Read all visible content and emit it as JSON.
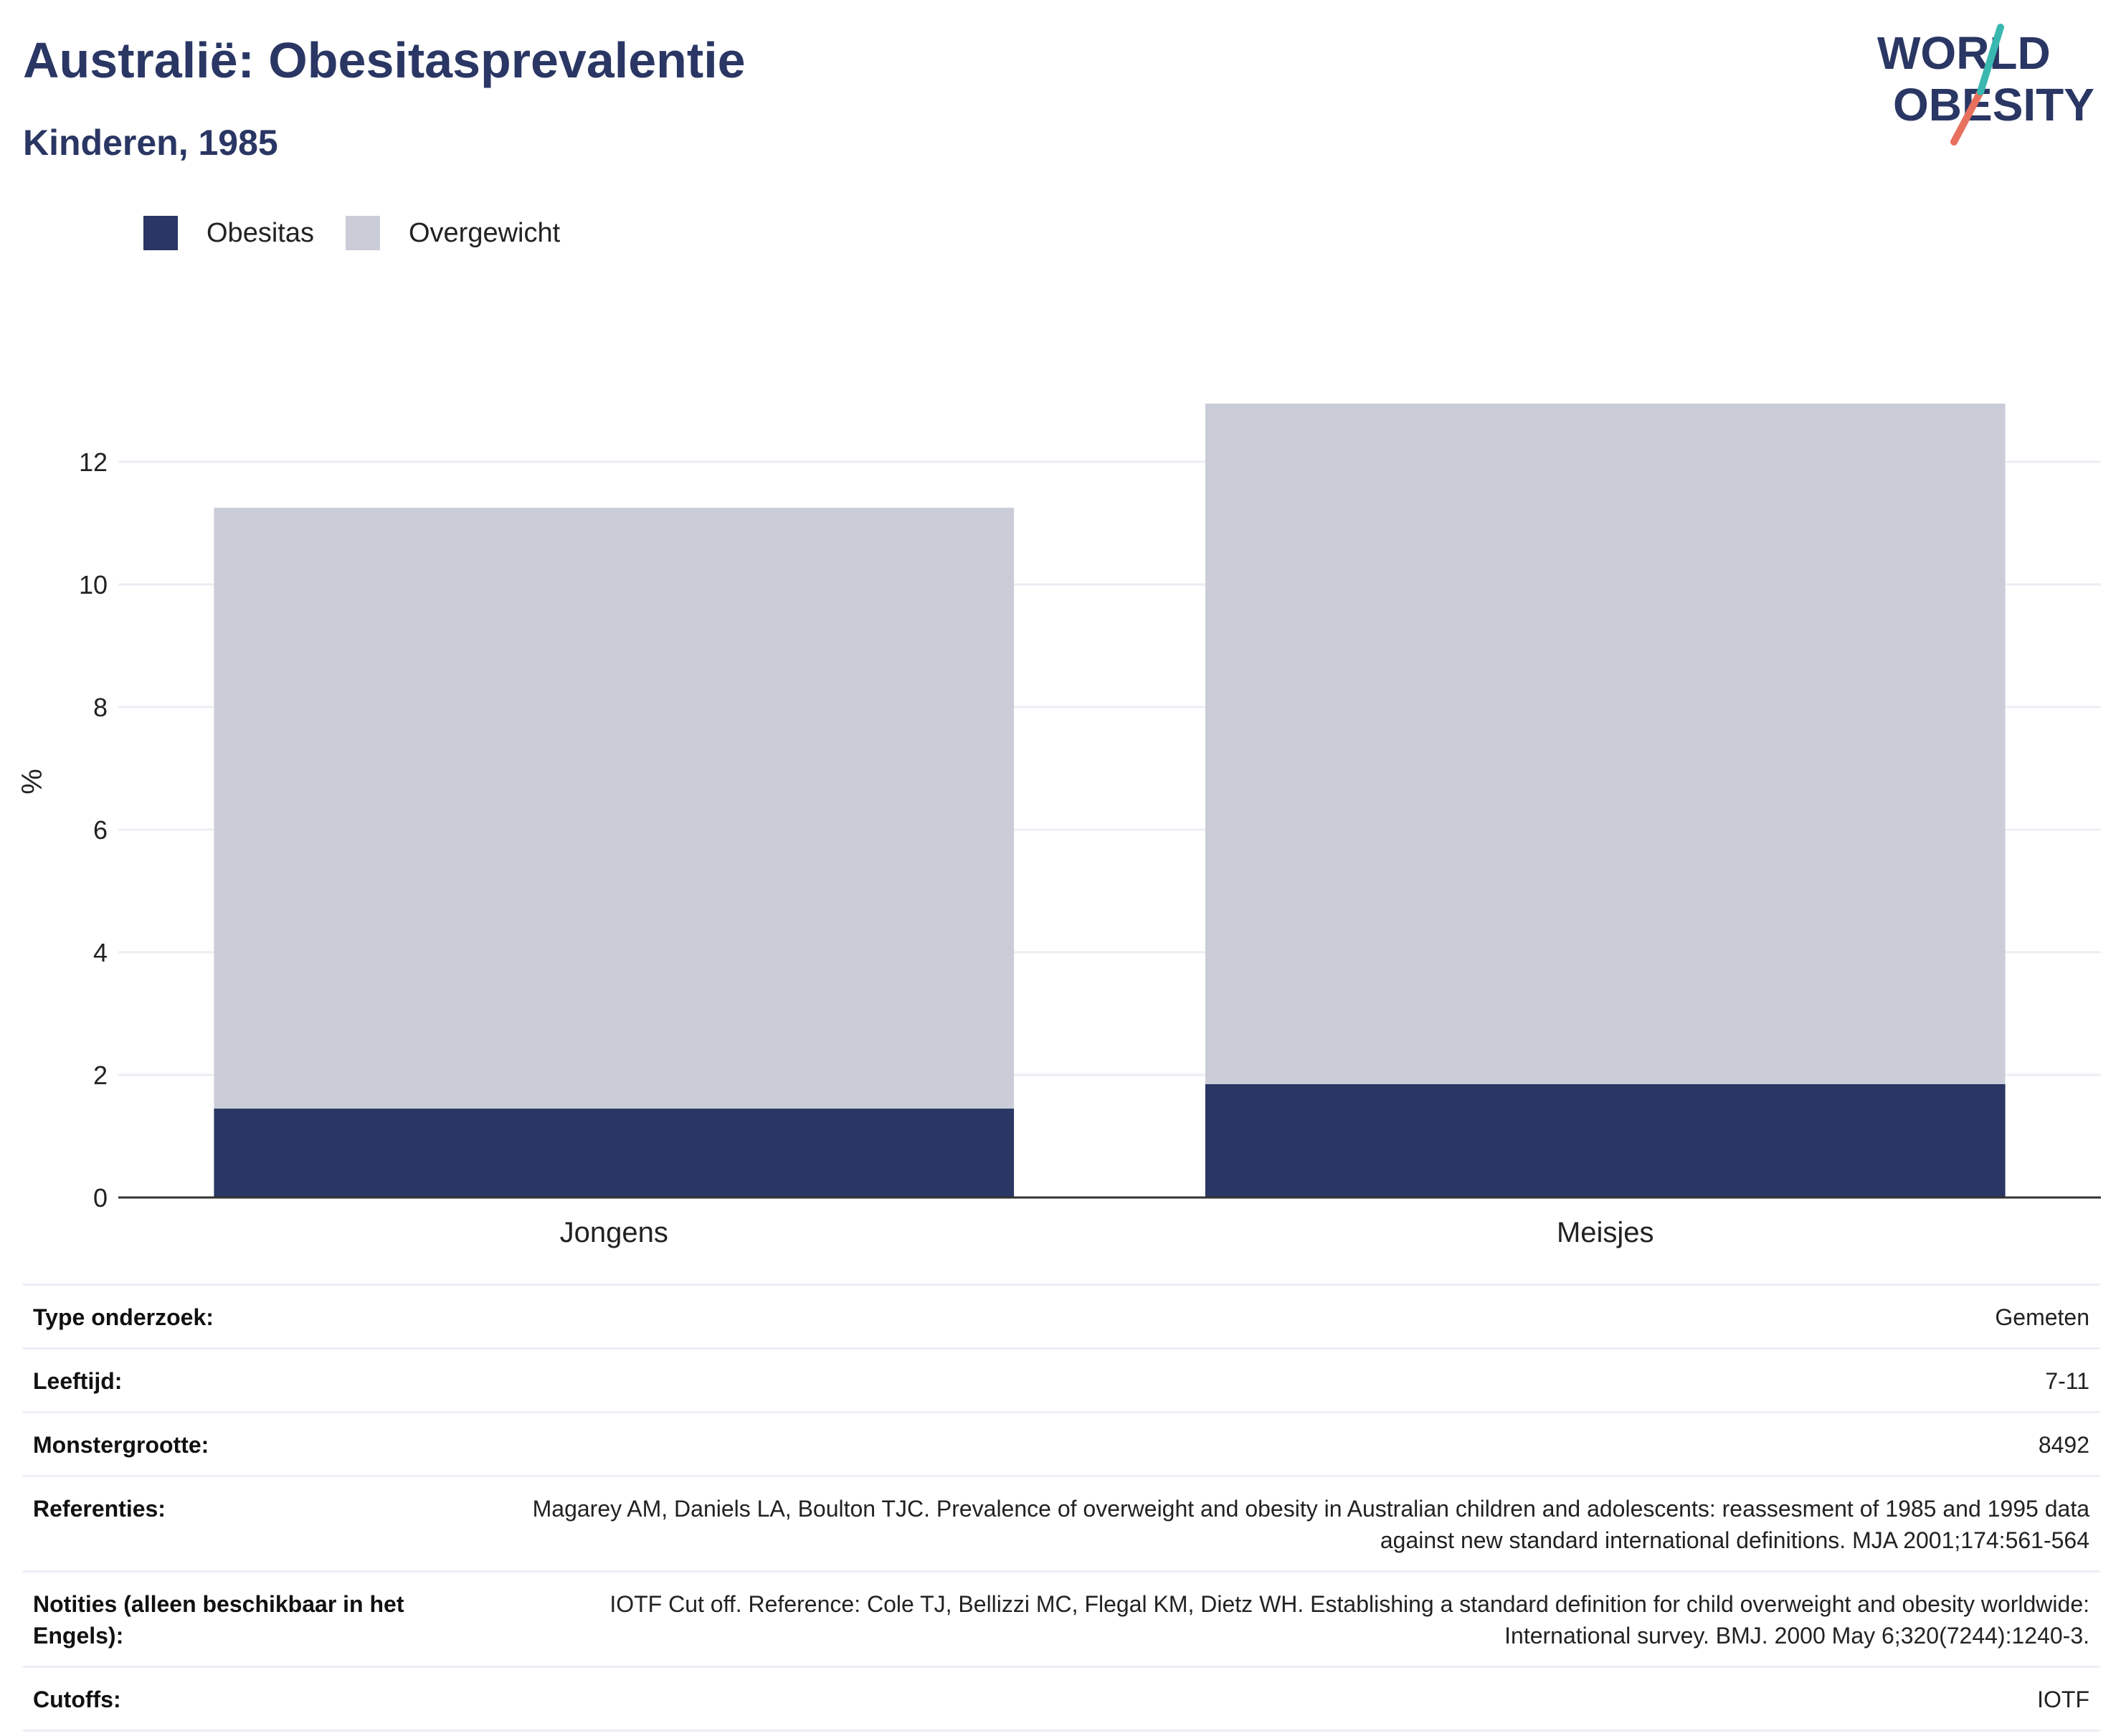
{
  "header": {
    "title": "Australië: Obesitasprevalentie",
    "subtitle": "Kinderen, 1985",
    "logo_text_line1": "WORLD",
    "logo_text_line2": "OBESITY"
  },
  "legend": [
    {
      "label": "Obesitas",
      "color": "#2a3663"
    },
    {
      "label": "Overgewicht",
      "color": "#cacdd8"
    }
  ],
  "chart_data": {
    "type": "bar",
    "stacked": true,
    "categories": [
      "Jongens",
      "Meisjes"
    ],
    "series": [
      {
        "name": "Obesitas",
        "color": "#2a3663",
        "values": [
          1.45,
          1.85
        ]
      },
      {
        "name": "Overgewicht",
        "color": "#cacdd8",
        "values": [
          9.8,
          11.1
        ]
      }
    ],
    "title": "Australië: Obesitasprevalentie",
    "subtitle": "Kinderen, 1985",
    "xlabel": "",
    "ylabel": "%",
    "ylim": [
      0,
      13
    ],
    "yticks": [
      0,
      2,
      4,
      6,
      8,
      10,
      12
    ],
    "grid": true,
    "legend_position": "top-left"
  },
  "info": [
    {
      "label": "Type onderzoek:",
      "value": "Gemeten"
    },
    {
      "label": "Leeftijd:",
      "value": "7-11"
    },
    {
      "label": "Monstergrootte:",
      "value": "8492"
    },
    {
      "label": "Referenties:",
      "value": "Magarey AM, Daniels LA, Boulton TJC. Prevalence of overweight and obesity in Australian children and adolescents: reassesment of 1985 and 1995 data against new standard international definitions. MJA 2001;174:561-564"
    },
    {
      "label": "Notities (alleen beschikbaar in het Engels):",
      "value": "IOTF Cut off. Reference: Cole TJ, Bellizzi MC, Flegal KM, Dietz WH. Establishing a standard definition for child overweight and obesity worldwide: International survey. BMJ. 2000 May 6;320(7244):1240-3."
    },
    {
      "label": "Cutoffs:",
      "value": "IOTF"
    }
  ]
}
